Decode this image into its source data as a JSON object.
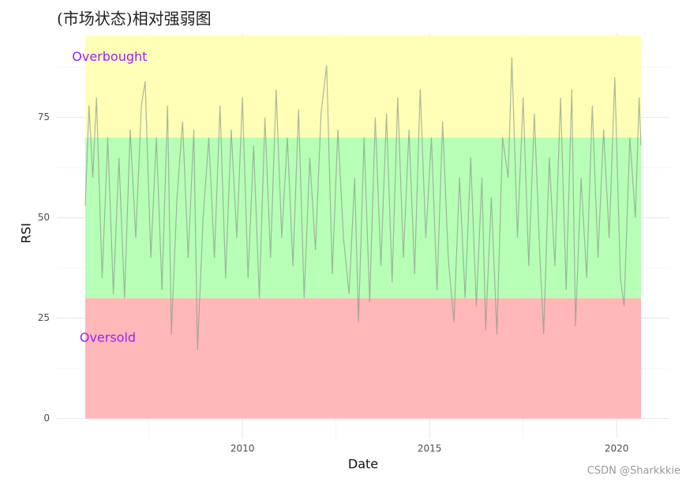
{
  "chart_data": {
    "type": "line",
    "title": "(市场状态)相对强弱图",
    "x_label": "Date",
    "y_label": "RSI",
    "xlim": [
      2005.04,
      2021.41
    ],
    "ylim": [
      -5,
      96
    ],
    "xticks": [
      2010,
      2015,
      2020
    ],
    "yticks": [
      0,
      25,
      50,
      75
    ],
    "minor_xticks": [
      2007.5,
      2012.5,
      2017.5
    ],
    "minor_yticks": [
      12.5,
      37.5,
      62.5,
      87.5
    ],
    "grid": true,
    "band_xlim": [
      2005.8,
      2020.65
    ],
    "bands": [
      {
        "from": 0,
        "to": 30,
        "color": "#ffb3b3"
      },
      {
        "from": 30,
        "to": 70,
        "color": "#b3ffb3"
      },
      {
        "from": 70,
        "to": 95.5,
        "color": "#ffffb3"
      }
    ],
    "annotations": [
      {
        "text": "Overbought",
        "x": 2006.45,
        "y": 90,
        "color": "#a020f0"
      },
      {
        "text": "Oversold",
        "x": 2006.4,
        "y": 20,
        "color": "#a020f0"
      }
    ],
    "series": [
      {
        "name": "RSI",
        "color": "#8a9a8a",
        "x": [
          2005.8,
          2005.9,
          2006.0,
          2006.1,
          2006.25,
          2006.4,
          2006.55,
          2006.7,
          2006.85,
          2007.0,
          2007.15,
          2007.3,
          2007.4,
          2007.55,
          2007.7,
          2007.85,
          2008.0,
          2008.1,
          2008.25,
          2008.4,
          2008.55,
          2008.7,
          2008.8,
          2008.95,
          2009.1,
          2009.25,
          2009.4,
          2009.55,
          2009.7,
          2009.85,
          2010.0,
          2010.15,
          2010.3,
          2010.45,
          2010.6,
          2010.75,
          2010.9,
          2011.05,
          2011.2,
          2011.35,
          2011.5,
          2011.65,
          2011.8,
          2011.95,
          2012.1,
          2012.25,
          2012.4,
          2012.55,
          2012.7,
          2012.85,
          2013.0,
          2013.1,
          2013.25,
          2013.4,
          2013.55,
          2013.7,
          2013.85,
          2014.0,
          2014.15,
          2014.3,
          2014.45,
          2014.6,
          2014.75,
          2014.9,
          2015.05,
          2015.2,
          2015.35,
          2015.5,
          2015.65,
          2015.8,
          2015.95,
          2016.1,
          2016.25,
          2016.4,
          2016.5,
          2016.65,
          2016.8,
          2016.95,
          2017.1,
          2017.2,
          2017.35,
          2017.5,
          2017.65,
          2017.8,
          2017.95,
          2018.05,
          2018.2,
          2018.35,
          2018.5,
          2018.65,
          2018.8,
          2018.9,
          2019.05,
          2019.2,
          2019.35,
          2019.5,
          2019.65,
          2019.8,
          2019.95,
          2020.1,
          2020.2,
          2020.35,
          2020.5,
          2020.6,
          2020.65
        ],
        "values": [
          53,
          78,
          60,
          80,
          35,
          70,
          31,
          65,
          30,
          72,
          45,
          78,
          84,
          40,
          70,
          32,
          78,
          21,
          55,
          74,
          40,
          72,
          17,
          50,
          70,
          40,
          78,
          35,
          72,
          45,
          80,
          35,
          68,
          30,
          75,
          40,
          82,
          45,
          70,
          38,
          77,
          30,
          65,
          42,
          76,
          88,
          36,
          72,
          45,
          31,
          60,
          24,
          70,
          29,
          75,
          38,
          76,
          34,
          80,
          40,
          72,
          36,
          82,
          45,
          70,
          32,
          74,
          40,
          24,
          60,
          30,
          65,
          28,
          60,
          22,
          55,
          21,
          70,
          60,
          90,
          45,
          80,
          38,
          76,
          40,
          21,
          65,
          38,
          80,
          32,
          82,
          23,
          60,
          35,
          78,
          40,
          72,
          45,
          85,
          35,
          28,
          70,
          50,
          80,
          68
        ]
      }
    ],
    "watermark": "CSDN @Sharkkkie"
  }
}
